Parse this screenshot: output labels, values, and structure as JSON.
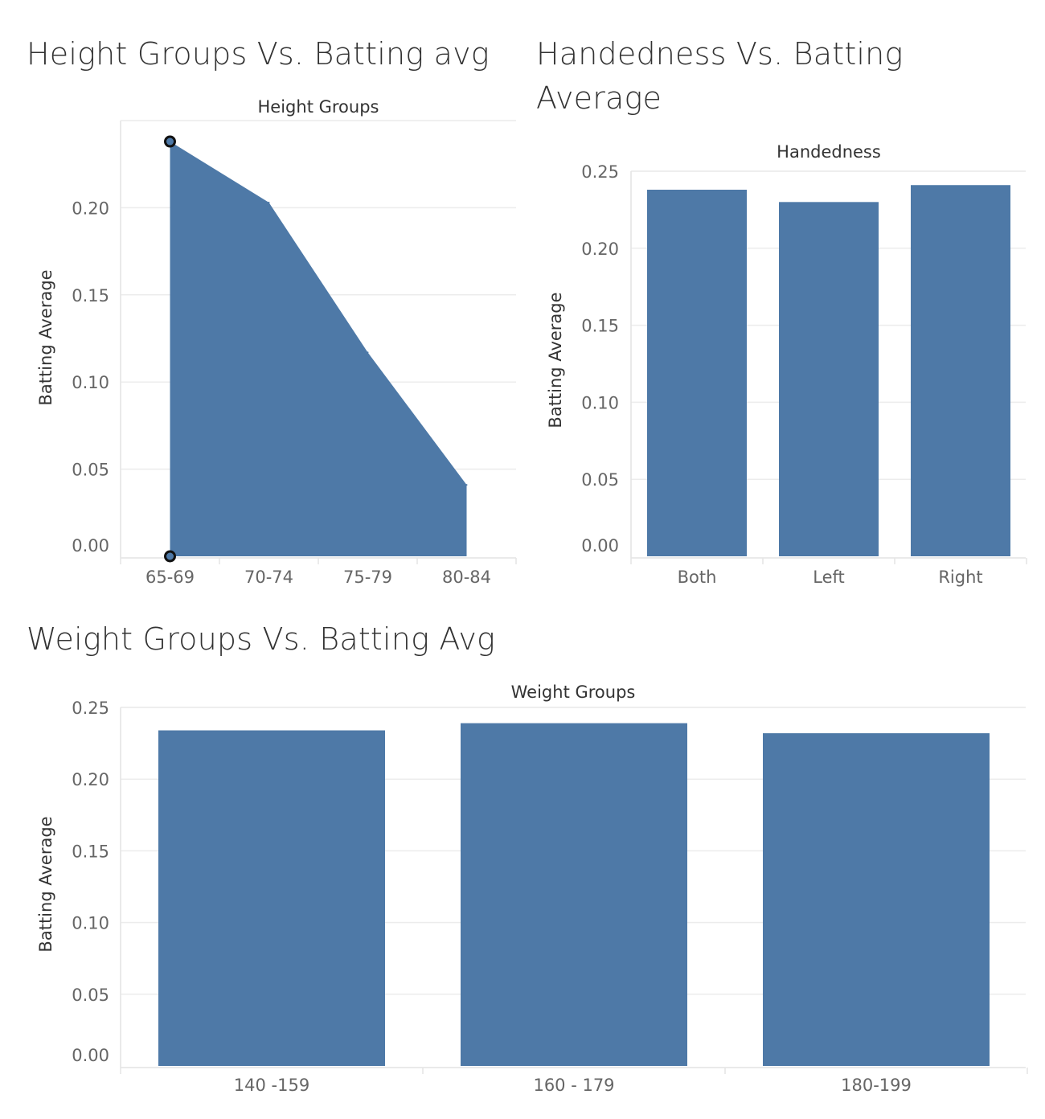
{
  "theme": {
    "bar_color": "#4e79a7",
    "marker_stroke": "#111111"
  },
  "panels": {
    "height": {
      "title": "Height Groups Vs. Batting avg"
    },
    "handedness": {
      "title": "Handedness Vs. Batting Average"
    },
    "weight": {
      "title": "Weight Groups Vs. Batting Avg"
    }
  },
  "chart_data": [
    {
      "id": "height",
      "type": "area",
      "header": "Height Groups",
      "ylabel": "Batting Average",
      "categories": [
        "65-69",
        "70-74",
        "75-79",
        "80-84"
      ],
      "values": [
        0.238,
        0.203,
        0.117,
        0.041
      ],
      "ylim": [
        0,
        0.25
      ],
      "yticks": [
        "0.00",
        "0.05",
        "0.10",
        "0.15",
        "0.20"
      ],
      "grid": true,
      "markers_on": "65-69"
    },
    {
      "id": "handedness",
      "type": "bar",
      "header": "Handedness",
      "ylabel": "Batting Average",
      "categories": [
        "Both",
        "Left",
        "Right"
      ],
      "values": [
        0.238,
        0.23,
        0.241
      ],
      "ylim": [
        0,
        0.25
      ],
      "yticks": [
        "0.00",
        "0.05",
        "0.10",
        "0.15",
        "0.20",
        "0.25"
      ],
      "grid": true
    },
    {
      "id": "weight",
      "type": "bar",
      "header": "Weight Groups",
      "ylabel": "Batting Average",
      "categories": [
        "140 -159",
        "160 - 179",
        "180-199"
      ],
      "values": [
        0.234,
        0.239,
        0.232
      ],
      "ylim": [
        0,
        0.25
      ],
      "yticks": [
        "0.00",
        "0.05",
        "0.10",
        "0.15",
        "0.20",
        "0.25"
      ],
      "grid": true
    }
  ]
}
